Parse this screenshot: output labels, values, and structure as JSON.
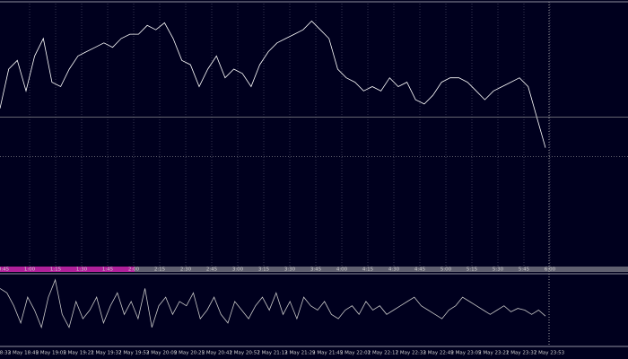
{
  "chart_data": [
    {
      "type": "line",
      "color": "#ffffff",
      "values": [
        180,
        225,
        235,
        200,
        240,
        260,
        210,
        205,
        225,
        240,
        245,
        250,
        255,
        250,
        260,
        265,
        265,
        275,
        270,
        278,
        260,
        235,
        230,
        205,
        225,
        240,
        215,
        225,
        220,
        205,
        230,
        245,
        255,
        260,
        265,
        270,
        280,
        270,
        260,
        225,
        215,
        210,
        200,
        205,
        200,
        215,
        205,
        210,
        190,
        185,
        195,
        210,
        215,
        215,
        210,
        200,
        190,
        200,
        205,
        210,
        215,
        205,
        170,
        135
      ],
      "ylim": [
        0,
        300
      ],
      "levels": [
        170,
        125
      ],
      "time_labels": [
        "0:45",
        "1:00",
        "1:15",
        "1:30",
        "1:45",
        "2:00",
        "2:15",
        "2:30",
        "2:45",
        "3:00",
        "3:15",
        "3:30",
        "3:45",
        "4:00",
        "4:15",
        "4:30",
        "4:45",
        "5:00",
        "5:15",
        "5:30",
        "5:45",
        "6:00"
      ]
    },
    {
      "type": "line",
      "color": "#c8c8c8",
      "values": [
        65,
        60,
        45,
        25,
        55,
        40,
        20,
        55,
        75,
        35,
        20,
        50,
        30,
        40,
        55,
        25,
        45,
        60,
        35,
        50,
        30,
        65,
        20,
        45,
        55,
        35,
        50,
        45,
        60,
        30,
        40,
        55,
        35,
        25,
        50,
        40,
        30,
        45,
        55,
        40,
        60,
        35,
        50,
        30,
        55,
        45,
        40,
        50,
        35,
        30,
        40,
        45,
        35,
        50,
        40,
        45,
        35,
        40,
        45,
        50,
        55,
        45,
        40,
        35,
        30,
        40,
        45,
        55,
        50,
        45,
        40,
        35,
        40,
        45,
        38,
        42,
        40,
        35,
        40,
        33
      ],
      "ylim": [
        0,
        80
      ],
      "time_labels": [
        "2 May 18:33",
        "2 May 18:49",
        "2 May 19:05",
        "2 May 19:21",
        "2 May 19:37",
        "2 May 19:53",
        "2 May 20:09",
        "2 May 20:25",
        "2 May 20:41",
        "2 May 20:57",
        "2 May 21:13",
        "2 May 21:29",
        "2 May 21:45",
        "2 May 22:01",
        "2 May 22:17",
        "2 May 22:33",
        "2 May 22:49",
        "2 May 23:05",
        "2 May 23:21",
        "2 May 23:37",
        "2 May 23:53"
      ]
    }
  ]
}
